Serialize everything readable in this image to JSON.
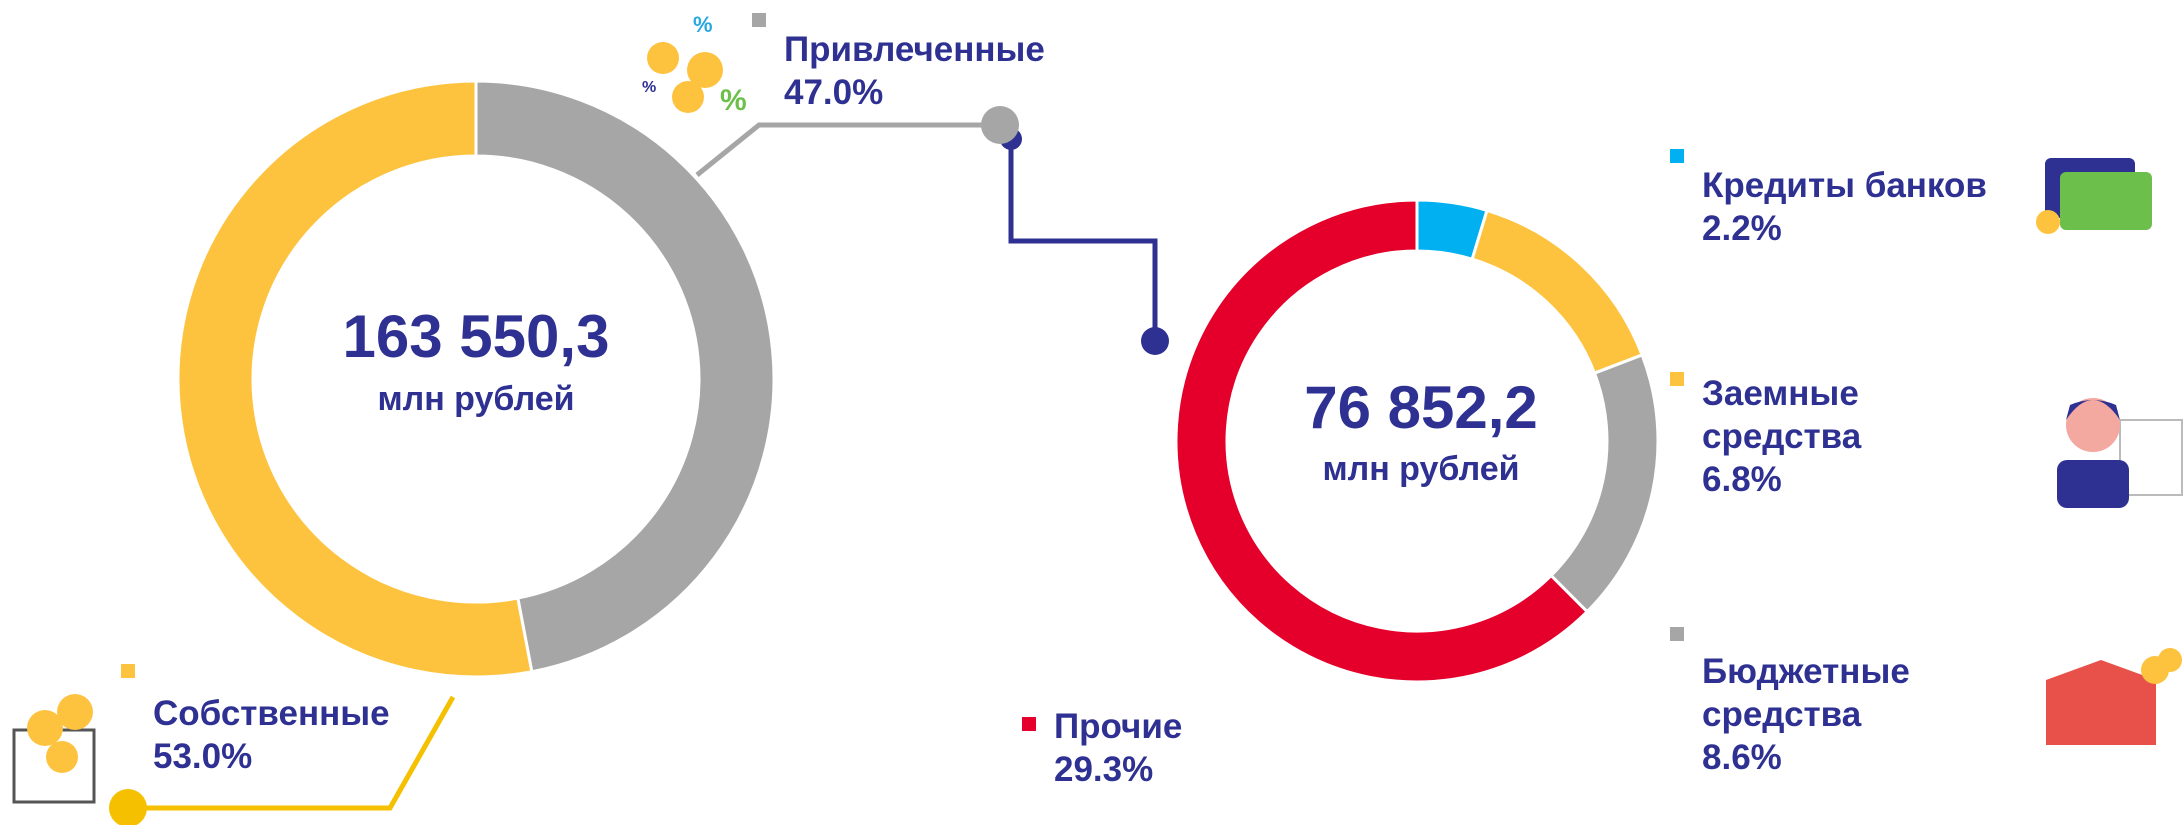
{
  "chart_data": [
    {
      "type": "donut",
      "center_value": "163 550,3",
      "center_unit": "млн рублей",
      "categories": [
        "Привлеченные",
        "Собственные"
      ],
      "values": [
        47.0,
        53.0
      ],
      "value_labels": [
        "47.0%",
        "53.0%"
      ],
      "colors": [
        "#a6a6a6",
        "#fdc33f"
      ]
    },
    {
      "type": "donut",
      "center_value": "76 852,2",
      "center_unit": "млн рублей",
      "categories": [
        "Кредиты банков",
        "Заемные средства",
        "Бюджетные средства",
        "Прочие"
      ],
      "values": [
        2.2,
        6.8,
        8.6,
        29.3
      ],
      "value_labels": [
        "2.2%",
        "6.8%",
        "8.6%",
        "29.3%"
      ],
      "colors": [
        "#00b0f0",
        "#fdc33f",
        "#a6a6a6",
        "#e4002b"
      ]
    }
  ]
}
